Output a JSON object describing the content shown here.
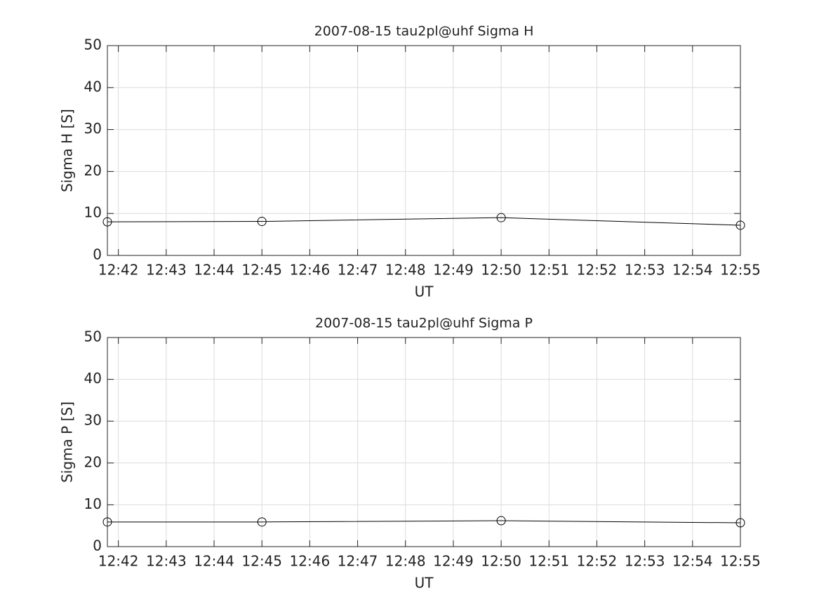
{
  "chart_data": [
    {
      "type": "line",
      "title": "2007-08-15  tau2pl@uhf Sigma H",
      "x_label": "UT",
      "y_label": "Sigma H [S]",
      "x": [
        761.77,
        765,
        770,
        775
      ],
      "values": [
        8.0,
        8.1,
        9.0,
        7.2
      ],
      "color": "#000000",
      "marker": "o",
      "xlim": [
        761.77,
        775
      ],
      "ylim": [
        0,
        50
      ],
      "xticks": [
        {
          "value": 762,
          "label": "12:42"
        },
        {
          "value": 763,
          "label": "12:43"
        },
        {
          "value": 764,
          "label": "12:44"
        },
        {
          "value": 765,
          "label": "12:45"
        },
        {
          "value": 766,
          "label": "12:46"
        },
        {
          "value": 767,
          "label": "12:47"
        },
        {
          "value": 768,
          "label": "12:48"
        },
        {
          "value": 769,
          "label": "12:49"
        },
        {
          "value": 770,
          "label": "12:50"
        },
        {
          "value": 771,
          "label": "12:51"
        },
        {
          "value": 772,
          "label": "12:52"
        },
        {
          "value": 773,
          "label": "12:53"
        },
        {
          "value": 774,
          "label": "12:54"
        },
        {
          "value": 775,
          "label": "12:55"
        }
      ],
      "yticks": [
        0,
        10,
        20,
        30,
        40,
        50
      ],
      "grid": true
    },
    {
      "type": "line",
      "title": "2007-08-15  tau2pl@uhf Sigma P",
      "x_label": "UT",
      "y_label": "Sigma P [S]",
      "x": [
        761.77,
        765,
        770,
        775
      ],
      "values": [
        5.9,
        5.9,
        6.2,
        5.7
      ],
      "color": "#000000",
      "marker": "o",
      "xlim": [
        761.77,
        775
      ],
      "ylim": [
        0,
        50
      ],
      "xticks": [
        {
          "value": 762,
          "label": "12:42"
        },
        {
          "value": 763,
          "label": "12:43"
        },
        {
          "value": 764,
          "label": "12:44"
        },
        {
          "value": 765,
          "label": "12:45"
        },
        {
          "value": 766,
          "label": "12:46"
        },
        {
          "value": 767,
          "label": "12:47"
        },
        {
          "value": 768,
          "label": "12:48"
        },
        {
          "value": 769,
          "label": "12:49"
        },
        {
          "value": 770,
          "label": "12:50"
        },
        {
          "value": 771,
          "label": "12:51"
        },
        {
          "value": 772,
          "label": "12:52"
        },
        {
          "value": 773,
          "label": "12:53"
        },
        {
          "value": 774,
          "label": "12:54"
        },
        {
          "value": 775,
          "label": "12:55"
        }
      ],
      "yticks": [
        0,
        10,
        20,
        30,
        40,
        50
      ],
      "grid": true
    }
  ]
}
